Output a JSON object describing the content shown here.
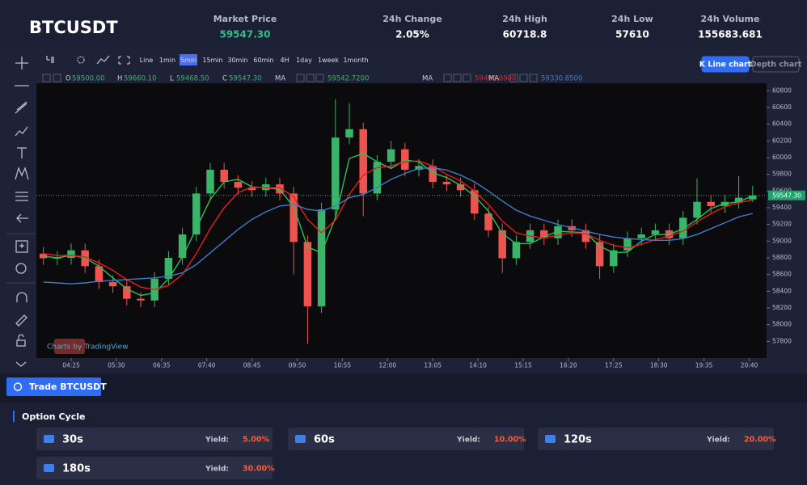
{
  "header": {
    "symbol": "BTCUSDT",
    "stats": [
      {
        "label": "Market Price",
        "value": "59547.30"
      },
      {
        "label": "24h Change",
        "value": "2.05%"
      },
      {
        "label": "24h High",
        "value": "60718.8"
      },
      {
        "label": "24h Low",
        "value": "57610"
      },
      {
        "label": "24h Volume",
        "value": "155683.681"
      }
    ]
  },
  "toolbar": {
    "intervals": [
      "Line",
      "1min",
      "5min",
      "15min",
      "30min",
      "60min",
      "4H",
      "1day",
      "1week",
      "1month"
    ],
    "active_interval": 2,
    "views": [
      "K Line chart",
      "Depth chart"
    ]
  },
  "legend": {
    "open_label": "O",
    "open": "59500.00",
    "high_label": "H",
    "high": "59660.10",
    "low_label": "L",
    "low": "59468.50",
    "close_label": "C",
    "close": "59547.30",
    "ma": [
      {
        "name": "MA",
        "value": "59542.7200"
      },
      {
        "name": "MA",
        "value": "59493.6900"
      },
      {
        "name": "MA",
        "value": "59330.8500"
      }
    ]
  },
  "chart_data": {
    "type": "candlestick",
    "watermark": "Charts by TradingView",
    "up_color": "#3bb36b",
    "down_color": "#ef5350",
    "x": [
      -40,
      -20,
      0,
      20,
      40,
      60,
      80,
      100,
      120,
      140,
      160,
      180,
      200,
      220,
      240,
      260,
      280,
      300,
      320,
      340,
      360,
      380,
      400,
      420,
      440,
      460,
      480,
      500,
      520,
      540,
      560,
      580,
      600,
      620,
      640,
      660,
      680,
      700,
      720,
      740,
      760,
      780,
      800,
      820,
      840,
      860,
      880,
      900,
      920,
      940,
      960,
      980
    ],
    "open": [
      58850,
      58795,
      58800,
      58890,
      58700,
      58510,
      58460,
      58310,
      58290,
      58550,
      58800,
      59080,
      59570,
      59855,
      59710,
      59640,
      59610,
      59680,
      59570,
      58990,
      58220,
      59380,
      60240,
      60340,
      59570,
      59950,
      60100,
      59855,
      59900,
      59710,
      59680,
      59610,
      59330,
      59130,
      58795,
      58990,
      59130,
      59035,
      59180,
      59130,
      58990,
      58700,
      58890,
      59035,
      59080,
      59130,
      59035,
      59280,
      59470,
      59420,
      59470,
      59500
    ],
    "high": [
      58930,
      58880,
      58970,
      58970,
      58780,
      58590,
      58540,
      58390,
      58630,
      58880,
      59160,
      59650,
      59935,
      59935,
      59790,
      59720,
      59760,
      59760,
      59650,
      59070,
      59460,
      60700,
      60650,
      60420,
      60030,
      60200,
      60180,
      59980,
      59980,
      59790,
      59760,
      59690,
      59410,
      59210,
      59070,
      59210,
      59210,
      59260,
      59260,
      59210,
      59070,
      58970,
      59115,
      59160,
      59210,
      59210,
      59360,
      59750,
      59550,
      59550,
      59780,
      59660.1
    ],
    "low": [
      58715,
      58715,
      58720,
      58620,
      58430,
      58380,
      58230,
      58210,
      58210,
      58470,
      58720,
      59000,
      59490,
      59630,
      59560,
      59530,
      59530,
      59490,
      58600,
      57770,
      58140,
      59300,
      60160,
      59300,
      59490,
      59870,
      59775,
      59775,
      59630,
      59600,
      59530,
      59250,
      59050,
      58620,
      58715,
      58910,
      58955,
      58955,
      59050,
      58910,
      58550,
      58620,
      58810,
      58955,
      59000,
      58955,
      58955,
      59200,
      59340,
      59340,
      59390,
      59468.5
    ],
    "close": [
      58795,
      58800,
      58890,
      58700,
      58510,
      58460,
      58310,
      58290,
      58550,
      58800,
      59080,
      59570,
      59855,
      59710,
      59640,
      59610,
      59680,
      59570,
      58990,
      58220,
      59380,
      60240,
      60340,
      59570,
      59950,
      60100,
      59855,
      59900,
      59710,
      59680,
      59610,
      59330,
      59130,
      58795,
      58990,
      59130,
      59035,
      59180,
      59130,
      58990,
      58700,
      58890,
      59035,
      59080,
      59130,
      59035,
      59280,
      59470,
      59420,
      59470,
      59520,
      59547.3
    ],
    "series": [
      {
        "name": "MA",
        "color": "#2fbf5a",
        "values": [
          58820,
          58800,
          58830,
          58800,
          58700,
          58560,
          58430,
          58350,
          58380,
          58550,
          58810,
          59150,
          59500,
          59710,
          59740,
          59650,
          59640,
          59620,
          59410,
          58930,
          58860,
          59280,
          59990,
          60050,
          59950,
          59870,
          59970,
          59950,
          59820,
          59760,
          59670,
          59540,
          59360,
          59090,
          58970,
          58970,
          59050,
          59120,
          59110,
          59100,
          58940,
          58860,
          58870,
          59000,
          59080,
          59080,
          59150,
          59260,
          59390,
          59450,
          59470,
          59542.72
        ]
      },
      {
        "name": "MA",
        "color": "#e3201b",
        "values": [
          58850,
          58830,
          58830,
          58810,
          58740,
          58650,
          58540,
          58450,
          58420,
          58470,
          58600,
          58850,
          59150,
          59400,
          59580,
          59650,
          59640,
          59640,
          59530,
          59260,
          59100,
          59250,
          59560,
          59790,
          59880,
          59900,
          59950,
          59960,
          59900,
          59800,
          59720,
          59600,
          59440,
          59240,
          59100,
          59060,
          59040,
          59070,
          59100,
          59090,
          59010,
          58950,
          58920,
          58960,
          59020,
          59060,
          59120,
          59230,
          59330,
          59410,
          59460,
          59493.69
        ]
      },
      {
        "name": "MA",
        "color": "#3d7cc9",
        "values": [
          58510,
          58500,
          58490,
          58500,
          58520,
          58530,
          58540,
          58550,
          58560,
          58580,
          58620,
          58720,
          58860,
          59000,
          59140,
          59260,
          59350,
          59420,
          59440,
          59380,
          59360,
          59420,
          59520,
          59560,
          59640,
          59740,
          59810,
          59870,
          59880,
          59850,
          59790,
          59710,
          59600,
          59480,
          59370,
          59300,
          59250,
          59200,
          59160,
          59120,
          59080,
          59050,
          59030,
          59020,
          59010,
          59010,
          59030,
          59080,
          59150,
          59220,
          59290,
          59330.85
        ]
      }
    ],
    "price_line": {
      "value": 59547.3,
      "label": "59547.30"
    },
    "xlim": [
      -50,
      1000
    ],
    "xticks": [
      {
        "value": 0,
        "label": "04:25"
      },
      {
        "value": 65,
        "label": "05:30"
      },
      {
        "value": 130,
        "label": "06:35"
      },
      {
        "value": 195,
        "label": "07:40"
      },
      {
        "value": 260,
        "label": "08:45"
      },
      {
        "value": 325,
        "label": "09:50"
      },
      {
        "value": 390,
        "label": "10:55"
      },
      {
        "value": 455,
        "label": "12:00"
      },
      {
        "value": 520,
        "label": "13:05"
      },
      {
        "value": 585,
        "label": "14:10"
      },
      {
        "value": 650,
        "label": "15:15"
      },
      {
        "value": 715,
        "label": "16:20"
      },
      {
        "value": 780,
        "label": "17:25"
      },
      {
        "value": 845,
        "label": "18:30"
      },
      {
        "value": 910,
        "label": "19:35"
      },
      {
        "value": 975,
        "label": "20:40"
      }
    ],
    "ylim": [
      57600,
      60890
    ],
    "yticks": [
      57800,
      58000,
      58200,
      58400,
      58600,
      58800,
      59000,
      59200,
      59400,
      59600,
      59800,
      60000,
      60200,
      60400,
      60600,
      60800
    ]
  },
  "trade": {
    "button": "Trade BTCUSDT",
    "section_title": "Option Cycle",
    "yield_label": "Yield:",
    "options": [
      {
        "cycle": "30s",
        "yield": "5.00%"
      },
      {
        "cycle": "60s",
        "yield": "10.00%"
      },
      {
        "cycle": "120s",
        "yield": "20.00%"
      },
      {
        "cycle": "180s",
        "yield": "30.00%"
      }
    ]
  }
}
